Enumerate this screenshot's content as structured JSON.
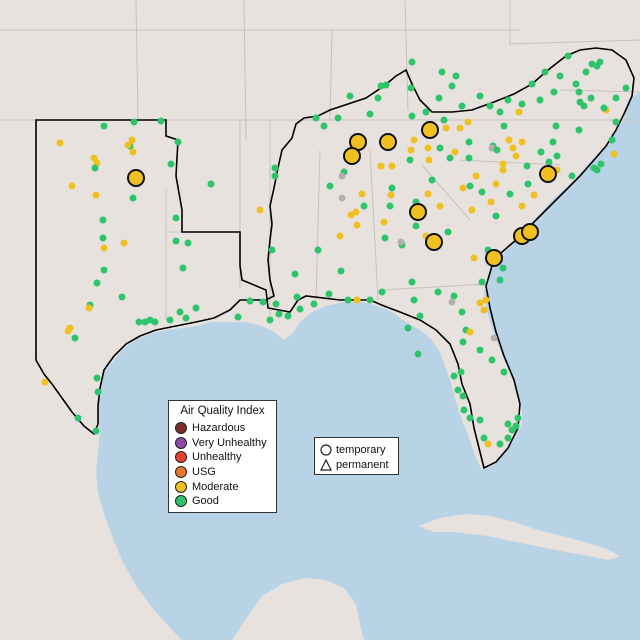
{
  "legend": {
    "title": "Air Quality Index",
    "categories": [
      {
        "label": "Hazardous",
        "color": "#7e2b2b"
      },
      {
        "label": "Very Unhealthy",
        "color": "#8e4ba6"
      },
      {
        "label": "Unhealthy",
        "color": "#e8402c"
      },
      {
        "label": "USG",
        "color": "#e8762a"
      },
      {
        "label": "Moderate",
        "color": "#f0c020"
      },
      {
        "label": "Good",
        "color": "#2fc46c"
      }
    ],
    "site_types": [
      {
        "label": "temporary",
        "shape": "circle"
      },
      {
        "label": "permanent",
        "shape": "triangle"
      }
    ]
  },
  "colors": {
    "ocean": "#b9d3e6",
    "land": "#e8e2df",
    "state_border": "#c7c0bd",
    "region_border": "#000000",
    "no_data": "#b0b0b0"
  },
  "large_temporary_sites_category": "Moderate"
}
